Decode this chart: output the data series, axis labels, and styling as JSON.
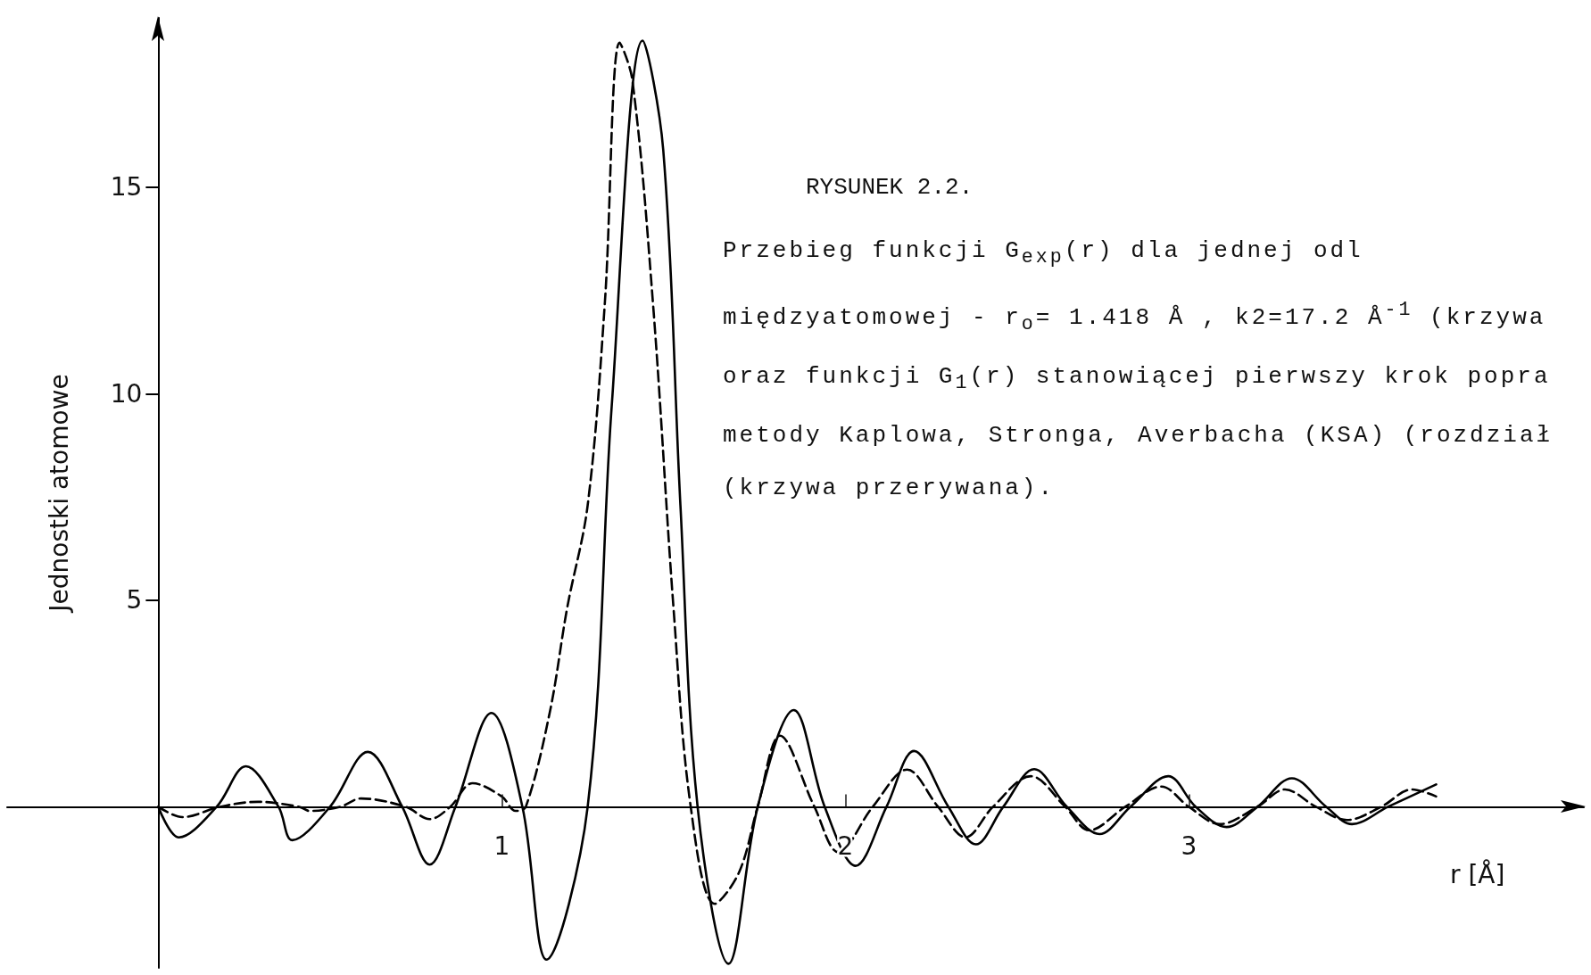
{
  "chart_data": {
    "type": "line",
    "title": "RYSUNEK 2.2.",
    "xlabel": "r [Å]",
    "ylabel": "Jednostki atomowe",
    "annotations": [
      "Przebieg funkcji G$_{exp}$(r) dla jednej odl",
      "międzyatomowej - r$_{o}$= 1.418 Å , k2=17.2 Å$^{-1}$ (krzywa",
      "oraz funkcji G$_{1}$(r) stanowiącej pierwszy krok popra",
      "metody Kaplowa, Stronga, Averbacha (KSA) (rozdział",
      "(krzywa przerywana)."
    ],
    "xlim": [
      -0.44,
      4.15
    ],
    "ylim": [
      -3.9,
      19.1
    ],
    "xticks": [
      1,
      2,
      3
    ],
    "yticks": [
      5,
      10,
      15
    ],
    "grid": false,
    "marker": "none",
    "series": [
      {
        "color": "#000000",
        "line_style": "solid",
        "x": [
          0,
          0.06,
          0.17,
          0.255,
          0.35,
          0.39,
          0.5,
          0.61,
          0.71,
          0.79,
          0.865,
          0.97,
          1.06,
          1.13,
          1.25,
          1.32,
          1.41,
          1.47,
          1.52,
          1.57,
          1.66,
          1.745,
          1.85,
          1.94,
          2.03,
          2.12,
          2.2,
          2.3,
          2.38,
          2.46,
          2.55,
          2.645,
          2.74,
          2.83,
          2.94,
          3.02,
          3.11,
          3.2,
          3.3,
          3.4,
          3.475,
          3.58,
          3.72
        ],
        "values": [
          0,
          -0.74,
          0,
          0.98,
          0,
          -0.81,
          0,
          1.33,
          0,
          -1.4,
          0,
          2.27,
          0,
          -3.7,
          0,
          9.7,
          18.55,
          15.9,
          7.3,
          0,
          -3.8,
          0,
          2.34,
          0,
          -1.43,
          0,
          1.35,
          0,
          -0.91,
          0,
          0.91,
          0,
          -0.66,
          0,
          0.74,
          0,
          -0.49,
          0,
          0.69,
          0,
          -0.42,
          0,
          0.54
        ]
      },
      {
        "color": "#000000",
        "line_style": "dashed",
        "x": [
          0,
          0.07,
          0.18,
          0.29,
          0.41,
          0.44,
          0.53,
          0.59,
          0.72,
          0.79,
          0.85,
          0.915,
          1.0,
          1.04,
          1.07,
          1.14,
          1.19,
          1.25,
          1.3,
          1.343,
          1.38,
          1.44,
          1.5,
          1.55,
          1.62,
          1.69,
          1.745,
          1.81,
          1.91,
          1.98,
          2.08,
          2.18,
          2.27,
          2.35,
          2.43,
          2.54,
          2.64,
          2.71,
          2.815,
          2.92,
          3.0,
          3.09,
          3.2,
          3.28,
          3.37,
          3.46,
          3.56,
          3.65,
          3.72
        ],
        "values": [
          0,
          -0.25,
          0,
          0.12,
          0,
          -0.1,
          0,
          0.2,
          0,
          -0.3,
          0,
          0.57,
          0.25,
          -0.1,
          0,
          2.3,
          4.8,
          7.3,
          12.2,
          18.5,
          17.6,
          12.2,
          4.8,
          0,
          -2.35,
          -1.6,
          0,
          1.72,
          0,
          -1.1,
          0,
          0.9,
          0,
          -0.74,
          0,
          0.74,
          0,
          -0.57,
          0,
          0.49,
          0,
          -0.42,
          0,
          0.42,
          0,
          -0.32,
          0,
          0.42,
          0.25
        ]
      }
    ]
  }
}
